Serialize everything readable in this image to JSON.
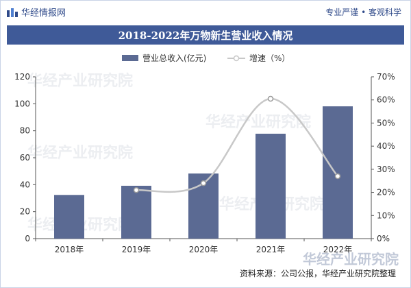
{
  "header": {
    "brand": "华经情报网",
    "tagline": "专业严谨 • 客观科学"
  },
  "watermark": {
    "text": "华经产业研究院"
  },
  "source": "资料来源：公司公报，华经产业研究院整理",
  "colors": {
    "bar": "#5b6a93",
    "line": "#c8c8c8",
    "banner": "#3f5a98",
    "brand": "#2f4a8a"
  },
  "chart_data": {
    "type": "bar",
    "title": "2018-2022年万物新生营业收入情况",
    "categories": [
      "2018年",
      "2019年",
      "2020年",
      "2021年",
      "2022年"
    ],
    "series": [
      {
        "name": "营业总收入(亿元)",
        "type": "bar",
        "axis": "left",
        "values": [
          32.4,
          39.2,
          48.3,
          77.8,
          98.1
        ]
      },
      {
        "name": "增速（%）",
        "type": "line",
        "axis": "right",
        "values": [
          null,
          21,
          24,
          60.5,
          27
        ]
      }
    ],
    "y_left": {
      "min": 0,
      "max": 120,
      "ticks": [
        "0",
        "20",
        "40",
        "60",
        "80",
        "100",
        "120"
      ]
    },
    "y_right": {
      "min": 0,
      "max": 70,
      "ticks": [
        "0%",
        "10%",
        "20%",
        "30%",
        "40%",
        "50%",
        "60%",
        "70%"
      ]
    },
    "legend_position": "top-center",
    "grid": false
  }
}
